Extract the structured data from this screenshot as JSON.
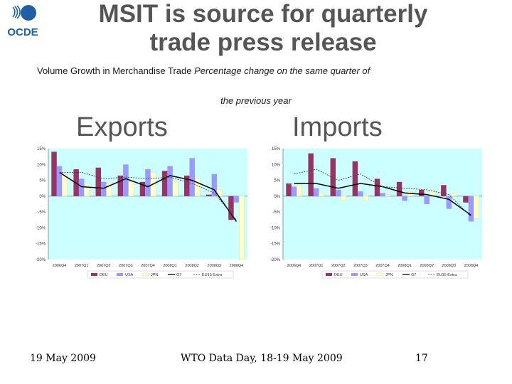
{
  "header": {
    "logo_text": "OCDE",
    "title_line1": "MSIT is source for quarterly",
    "title_line2": "trade press release",
    "subtitle_normal": "Volume Growth in Merchandise Trade ",
    "subtitle_italic": "Percentage change on the same quarter of",
    "subtitle_line2": "the previous year"
  },
  "footer": {
    "date": "19 May 2009",
    "event": "WTO Data Day, 18-19 May 2009",
    "page": "17"
  },
  "colors": {
    "DEU": "#993366",
    "USA": "#9999ff",
    "JPN": "#ffffcc",
    "G7": "#000000",
    "EU15": "#444444",
    "plot_bg": "#ccffff",
    "logo_blue": "#1f5fa6"
  },
  "chart_data": [
    {
      "type": "bar",
      "title": "Exports",
      "categories": [
        "2006Q4",
        "2007Q1",
        "2007Q2",
        "2007Q3",
        "2007Q4",
        "2008Q1",
        "2008Q2",
        "2008Q3",
        "2008Q4"
      ],
      "ylim": [
        -20,
        15
      ],
      "yticks": [
        15,
        10,
        5,
        0,
        -5,
        -10,
        -15,
        -20
      ],
      "ytick_labels": [
        "15%",
        "10%",
        "5%",
        "0%",
        "-5%",
        "-10%",
        "-15%",
        "-20%"
      ],
      "grid": false,
      "legend_placement": "bottom",
      "series": [
        {
          "name": "DEU",
          "kind": "bar",
          "values": [
            14,
            8.5,
            9,
            6.5,
            4.5,
            8,
            6.5,
            0.5,
            -7.5
          ]
        },
        {
          "name": "USA",
          "kind": "bar",
          "values": [
            9.5,
            5.5,
            4.5,
            10,
            8.5,
            9.5,
            12,
            7,
            -2
          ]
        },
        {
          "name": "JPN",
          "kind": "bar",
          "values": [
            7,
            3.5,
            4,
            4.5,
            7.5,
            5,
            5.5,
            2,
            -20
          ]
        },
        {
          "name": "G7",
          "kind": "line",
          "values": [
            7.5,
            3,
            2.5,
            5.5,
            3,
            6.5,
            5,
            2,
            -8
          ]
        },
        {
          "name": "EU15 Extra",
          "kind": "dashed-line",
          "values": [
            7.5,
            7.5,
            5.5,
            6,
            5.5,
            6,
            4,
            1,
            -7.5
          ]
        }
      ]
    },
    {
      "type": "bar",
      "title": "Imports",
      "categories": [
        "2006Q4",
        "2007Q1",
        "2007Q2",
        "2007Q3",
        "2007Q4",
        "2008Q1",
        "2008Q2",
        "2008Q3",
        "2008Q4"
      ],
      "ylim": [
        -20,
        15
      ],
      "yticks": [
        15,
        10,
        5,
        0,
        -5,
        -10,
        -15,
        -20
      ],
      "ytick_labels": [
        "15%",
        "10%",
        "5%",
        "0%",
        "-5%",
        "-10%",
        "-15%",
        "-20%"
      ],
      "grid": false,
      "legend_placement": "bottom",
      "series": [
        {
          "name": "DEU",
          "kind": "bar",
          "values": [
            4,
            13.5,
            12,
            11,
            5.5,
            4.5,
            2,
            3.5,
            -2
          ]
        },
        {
          "name": "USA",
          "kind": "bar",
          "values": [
            3,
            2.5,
            2,
            1.5,
            1,
            -1.5,
            -2.5,
            -4,
            -8
          ]
        },
        {
          "name": "JPN",
          "kind": "bar",
          "values": [
            3.5,
            1,
            -1.5,
            -1.5,
            0.5,
            1.5,
            2,
            1,
            -7
          ]
        },
        {
          "name": "G7",
          "kind": "line",
          "values": [
            4,
            4,
            2.5,
            4,
            3,
            1,
            0.5,
            -1,
            -6
          ]
        },
        {
          "name": "EU15 Extra",
          "kind": "dashed-line",
          "values": [
            7,
            8.5,
            5,
            7,
            3,
            2.5,
            2,
            0.5,
            -6.5
          ]
        }
      ]
    }
  ]
}
